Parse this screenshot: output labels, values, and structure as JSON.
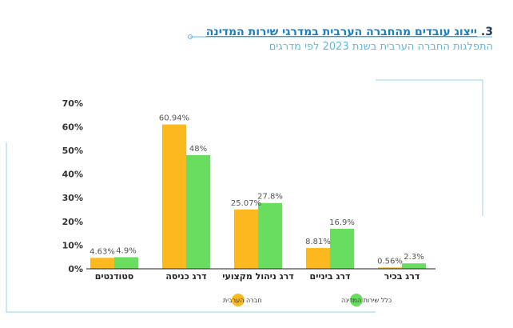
{
  "header": {
    "title_number": "3.",
    "title_text": "ייצוג עובדים מהחברה הערבית במדרגי שירות המדינה",
    "subtitle": "התפלגות החברה הערבית בשנת 2023 לפי מדרגים"
  },
  "colors": {
    "arab_society": "#fbb91f",
    "all_civil_service": "#69dd5f",
    "accent_blue": "#1a7fc1",
    "light_blue": "#5cb8e6",
    "frame_line": "#8fd3f0"
  },
  "chart_data": {
    "type": "bar",
    "title": "ייצוג עובדים מהחברה הערבית במדרגי שירות המדינה",
    "xlabel": "",
    "ylabel": "",
    "ylim": [
      0,
      70
    ],
    "yticks": [
      "70%",
      "60%",
      "50%",
      "40%",
      "30%",
      "20%",
      "10%",
      "0%"
    ],
    "categories": [
      "סטודנטים",
      "דרג כניסה",
      "דרג ניהול מקצועי",
      "דרג ביניים",
      "דרג בכיר"
    ],
    "series": [
      {
        "name": "חברה הערבית",
        "values": [
          4.63,
          60.94,
          25.07,
          8.81,
          0.56
        ],
        "labels": [
          "4.63%",
          "60.94%",
          "25.07%",
          "8.81%",
          "0.56%"
        ]
      },
      {
        "name": "כלל שירות המדינה",
        "values": [
          4.9,
          48,
          27.8,
          16.9,
          2.3
        ],
        "labels": [
          "4.9%",
          "48%",
          "27.8%",
          "16.9%",
          "2.3%"
        ]
      }
    ],
    "legend_position": "bottom"
  }
}
